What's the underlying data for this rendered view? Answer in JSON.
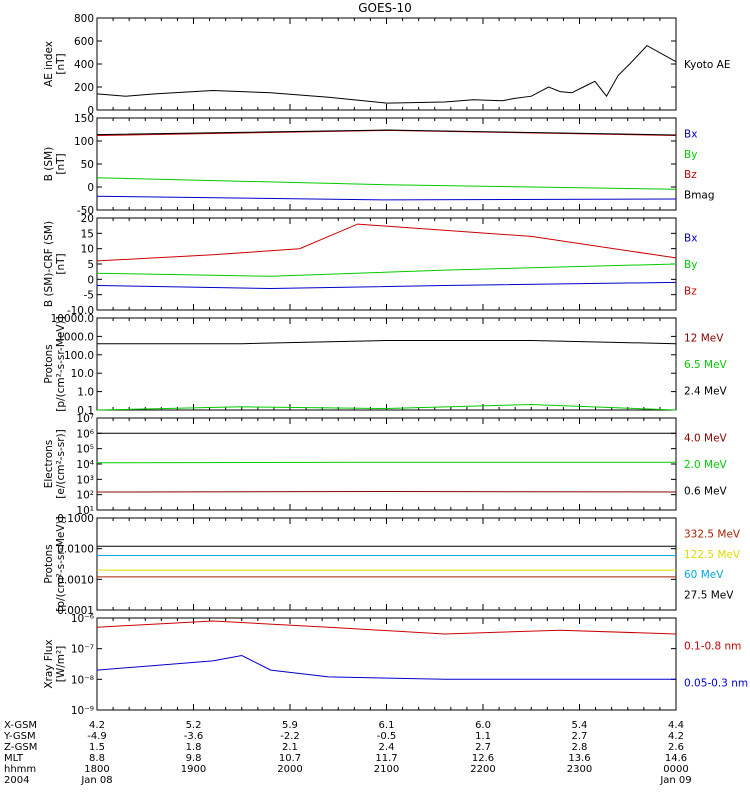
{
  "title": "GOES-10",
  "colors": {
    "black": "#000000",
    "red": "#cc0000",
    "blue": "#0000cc",
    "green": "#00cc00",
    "darkred": "#8b0000",
    "cyan": "#00aadd",
    "yellow": "#dddd00",
    "rust": "#aa2200"
  },
  "chart_data": [
    {
      "type": "line",
      "ylabel": "AE index\n[nT]",
      "yticks": [
        "0",
        "200",
        "400",
        "600",
        "800"
      ],
      "ylim": [
        0,
        800
      ],
      "series": [
        {
          "name": "Kyoto AE",
          "color": "#000000",
          "x": [
            0,
            0.05,
            0.1,
            0.2,
            0.3,
            0.4,
            0.5,
            0.6,
            0.65,
            0.7,
            0.72,
            0.75,
            0.78,
            0.8,
            0.82,
            0.84,
            0.86,
            0.88,
            0.9,
            0.92,
            0.95,
            1.0
          ],
          "values": [
            140,
            120,
            140,
            170,
            150,
            110,
            60,
            70,
            90,
            80,
            100,
            120,
            200,
            160,
            150,
            200,
            250,
            120,
            300,
            400,
            560,
            420
          ]
        }
      ]
    },
    {
      "type": "line",
      "ylabel": "B (SM)\n[nT]",
      "yticks": [
        "-50",
        "0",
        "50",
        "100",
        "150"
      ],
      "ylim": [
        -50,
        150
      ],
      "series": [
        {
          "name": "Bx",
          "color": "#0000cc",
          "x": [
            0,
            0.5,
            1
          ],
          "values": [
            -20,
            -28,
            -26
          ]
        },
        {
          "name": "By",
          "color": "#00cc00",
          "x": [
            0,
            0.5,
            1
          ],
          "values": [
            20,
            5,
            -5
          ]
        },
        {
          "name": "Bz",
          "color": "#cc0000",
          "x": [
            0,
            0.5,
            1
          ],
          "values": [
            112,
            123,
            112
          ]
        },
        {
          "name": "Bmag",
          "color": "#000000",
          "x": [
            0,
            0.5,
            1
          ],
          "values": [
            114,
            124,
            113
          ]
        }
      ]
    },
    {
      "type": "line",
      "ylabel": "B (SM)-CRF (SM)\n[nT]",
      "yticks": [
        "-10.0",
        "-5",
        "0",
        "5",
        "10",
        "15",
        "20"
      ],
      "ylim": [
        -10,
        20
      ],
      "series": [
        {
          "name": "Bx",
          "color": "#0000cc",
          "x": [
            0,
            0.3,
            0.6,
            1
          ],
          "values": [
            -2,
            -3,
            -2,
            -1
          ]
        },
        {
          "name": "By",
          "color": "#00cc00",
          "x": [
            0,
            0.3,
            0.6,
            1
          ],
          "values": [
            2,
            1,
            3,
            5
          ]
        },
        {
          "name": "Bz",
          "color": "#cc0000",
          "x": [
            0,
            0.2,
            0.35,
            0.45,
            0.75,
            1
          ],
          "values": [
            6,
            8,
            10,
            18,
            14,
            7
          ]
        }
      ]
    },
    {
      "type": "line",
      "ylabel": "Protons\n[p/(cm²-s-sr-MeV)]",
      "yticks": [
        "0.1",
        "1.0",
        "10.0",
        "100.0",
        "1000.0",
        "10000.0"
      ],
      "log": true,
      "ylim": [
        0.1,
        10000
      ],
      "series": [
        {
          "name": "12 MeV",
          "color": "#8b0000",
          "x": [],
          "values": []
        },
        {
          "name": "6.5 MeV",
          "color": "#00cc00",
          "x": [
            0,
            0.25,
            0.5,
            0.75,
            1
          ],
          "values": [
            0.1,
            0.15,
            0.12,
            0.2,
            0.1
          ]
        },
        {
          "name": "2.4 MeV",
          "color": "#000000",
          "x": [
            0,
            0.25,
            0.5,
            0.75,
            1
          ],
          "values": [
            400,
            400,
            600,
            600,
            400
          ]
        }
      ]
    },
    {
      "type": "line",
      "ylabel": "Electrons\n[e/(cm²-s-sr)]",
      "yticks": [
        "10¹",
        "10²",
        "10³",
        "10⁴",
        "10⁵",
        "10⁶",
        "10⁷"
      ],
      "log": true,
      "ylim": [
        10,
        10000000
      ],
      "series": [
        {
          "name": "4.0 MeV",
          "color": "#8b0000",
          "x": [
            0,
            0.5,
            1
          ],
          "values": [
            150,
            160,
            150
          ]
        },
        {
          "name": "2.0 MeV",
          "color": "#00cc00",
          "x": [
            0,
            0.5,
            1
          ],
          "values": [
            12000,
            13000,
            13000
          ]
        },
        {
          "name": "0.6 MeV",
          "color": "#000000",
          "x": [
            0,
            0.5,
            1
          ],
          "values": [
            1000000,
            1000000,
            1000000
          ]
        }
      ]
    },
    {
      "type": "line",
      "ylabel": "Protons\n[p/(cm²-s-sr-MeV)]",
      "yticks": [
        "0.0001",
        "0.0010",
        "0.0100",
        "0.1000"
      ],
      "log": true,
      "ylim": [
        0.0001,
        0.1
      ],
      "series": [
        {
          "name": "332.5 MeV",
          "color": "#aa2200",
          "x": [
            0,
            1
          ],
          "values": [
            0.0012,
            0.0012
          ]
        },
        {
          "name": "122.5 MeV",
          "color": "#dddd00",
          "x": [
            0,
            1
          ],
          "values": [
            0.002,
            0.002
          ]
        },
        {
          "name": "60 MeV",
          "color": "#00aadd",
          "x": [
            0,
            1
          ],
          "values": [
            0.006,
            0.006
          ]
        },
        {
          "name": "27.5 MeV",
          "color": "#000000",
          "x": [
            0,
            1
          ],
          "values": [
            0.012,
            0.012
          ]
        }
      ]
    },
    {
      "type": "line",
      "ylabel": "Xray Flux\n[W/m²]",
      "yticks": [
        "10⁻⁹",
        "10⁻⁸",
        "10⁻⁷",
        "10⁻⁶"
      ],
      "log": true,
      "ylim": [
        1e-09,
        1e-06
      ],
      "series": [
        {
          "name": "0.1-0.8 nm",
          "color": "#cc0000",
          "x": [
            0,
            0.2,
            0.4,
            0.6,
            0.8,
            1
          ],
          "values": [
            5e-07,
            8e-07,
            5e-07,
            3e-07,
            4e-07,
            3e-07
          ]
        },
        {
          "name": "0.05-0.3 nm",
          "color": "#0000cc",
          "x": [
            0,
            0.2,
            0.25,
            0.3,
            0.4,
            0.6,
            0.8,
            1
          ],
          "values": [
            2e-08,
            4e-08,
            6e-08,
            2e-08,
            1.2e-08,
            1e-08,
            1e-08,
            1e-08
          ]
        }
      ]
    }
  ],
  "xaxis": {
    "rowlabels": [
      "X-GSM",
      "Y-GSM",
      "Z-GSM",
      "MLT",
      "hhmm",
      "2004"
    ],
    "columns": [
      {
        "x": 0,
        "vals": [
          "4.2",
          "-4.9",
          "1.5",
          "8.8",
          "1800",
          "Jan 08"
        ]
      },
      {
        "x": 0.1667,
        "vals": [
          "5.2",
          "-3.6",
          "1.8",
          "9.8",
          "1900",
          ""
        ]
      },
      {
        "x": 0.3333,
        "vals": [
          "5.9",
          "-2.2",
          "2.1",
          "10.7",
          "2000",
          ""
        ]
      },
      {
        "x": 0.5,
        "vals": [
          "6.1",
          "-0.5",
          "2.4",
          "11.7",
          "2100",
          ""
        ]
      },
      {
        "x": 0.6667,
        "vals": [
          "6.0",
          "1.1",
          "2.7",
          "12.6",
          "2200",
          ""
        ]
      },
      {
        "x": 0.8333,
        "vals": [
          "5.4",
          "2.7",
          "2.8",
          "13.6",
          "2300",
          ""
        ]
      },
      {
        "x": 1,
        "vals": [
          "4.4",
          "4.2",
          "2.6",
          "14.6",
          "0000",
          "Jan 09"
        ]
      }
    ]
  }
}
